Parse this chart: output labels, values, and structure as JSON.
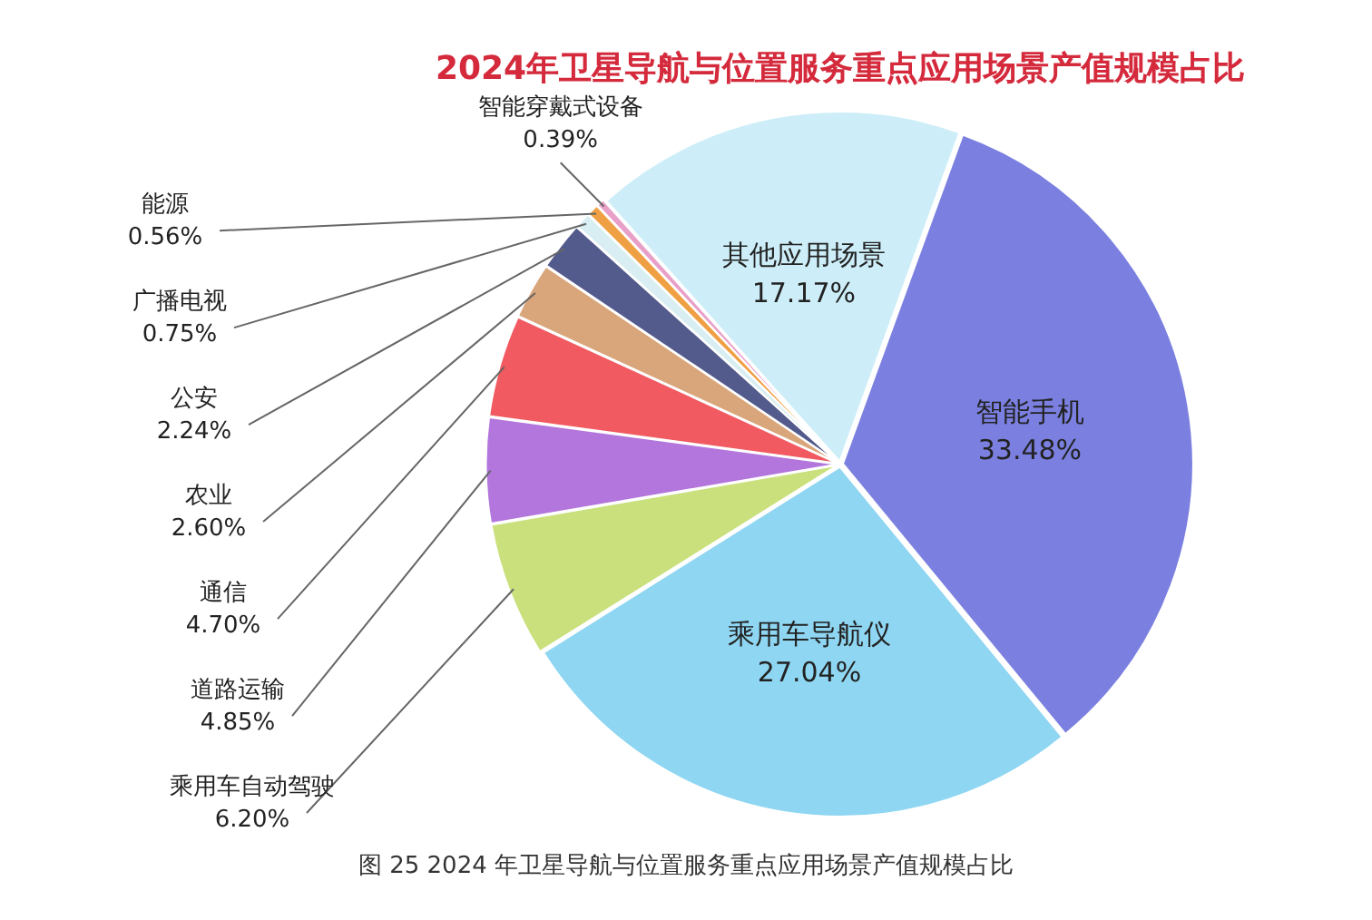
{
  "chart_data": {
    "type": "pie",
    "title": "2024年卫星导航与位置服务重点应用场景产值规模占比",
    "categories": [
      "智能手机",
      "乘用车导航仪",
      "乘用车自动驾驶",
      "道路运输",
      "通信",
      "农业",
      "公安",
      "广播电视",
      "能源",
      "智能穿戴式设备",
      "其他应用场景"
    ],
    "values": [
      33.48,
      27.04,
      6.2,
      4.85,
      4.7,
      2.6,
      2.24,
      0.75,
      0.56,
      0.39,
      17.17
    ],
    "value_labels": [
      "33.48%",
      "27.04%",
      "6.20%",
      "4.85%",
      "4.70%",
      "2.60%",
      "2.24%",
      "0.75%",
      "0.56%",
      "0.39%",
      "17.17%"
    ],
    "colors": [
      "#7b80e0",
      "#8fd6f2",
      "#c9e07c",
      "#b276dc",
      "#f05a60",
      "#d9a57a",
      "#535a8c",
      "#d8eef2",
      "#f0a044",
      "#e8a0c8",
      "#cdeef8"
    ],
    "legend": false,
    "annotations": [
      "图 25  2024 年卫星导航与位置服务重点应用场景产值规模占比"
    ]
  }
}
